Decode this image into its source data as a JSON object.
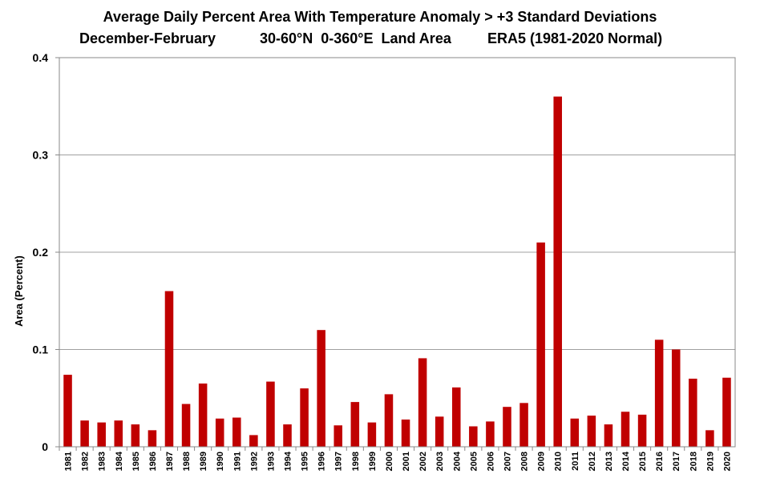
{
  "title": "Average Daily Percent Area With Temperature Anomaly > +3 Standard Deviations",
  "subtitle_parts": [
    "December-February",
    "30-60°N  0-360°E  Land Area",
    "ERA5 (1981-2020 Normal)"
  ],
  "chart_data": {
    "type": "bar",
    "title": "Average Daily Percent Area With Temperature Anomaly > +3 Standard Deviations",
    "xlabel": "",
    "ylabel": "Area (Percent)",
    "ylim": [
      0,
      0.4
    ],
    "yticks": [
      "0",
      "0.1",
      "0.2",
      "0.3",
      "0.4"
    ],
    "grid": true,
    "bar_color": "#c00000",
    "categories": [
      "1981",
      "1982",
      "1983",
      "1984",
      "1985",
      "1986",
      "1987",
      "1988",
      "1989",
      "1990",
      "1991",
      "1992",
      "1993",
      "1994",
      "1995",
      "1996",
      "1997",
      "1998",
      "1999",
      "2000",
      "2001",
      "2002",
      "2003",
      "2004",
      "2005",
      "2006",
      "2007",
      "2008",
      "2009",
      "2010",
      "2011",
      "2012",
      "2013",
      "2014",
      "2015",
      "2016",
      "2017",
      "2018",
      "2019",
      "2020"
    ],
    "values": [
      0.074,
      0.027,
      0.025,
      0.027,
      0.023,
      0.017,
      0.16,
      0.044,
      0.065,
      0.029,
      0.03,
      0.012,
      0.067,
      0.023,
      0.06,
      0.12,
      0.022,
      0.046,
      0.025,
      0.054,
      0.028,
      0.091,
      0.031,
      0.061,
      0.021,
      0.026,
      0.041,
      0.045,
      0.21,
      0.36,
      0.029,
      0.032,
      0.023,
      0.036,
      0.033,
      0.11,
      0.1,
      0.07,
      0.017,
      0.071
    ]
  }
}
